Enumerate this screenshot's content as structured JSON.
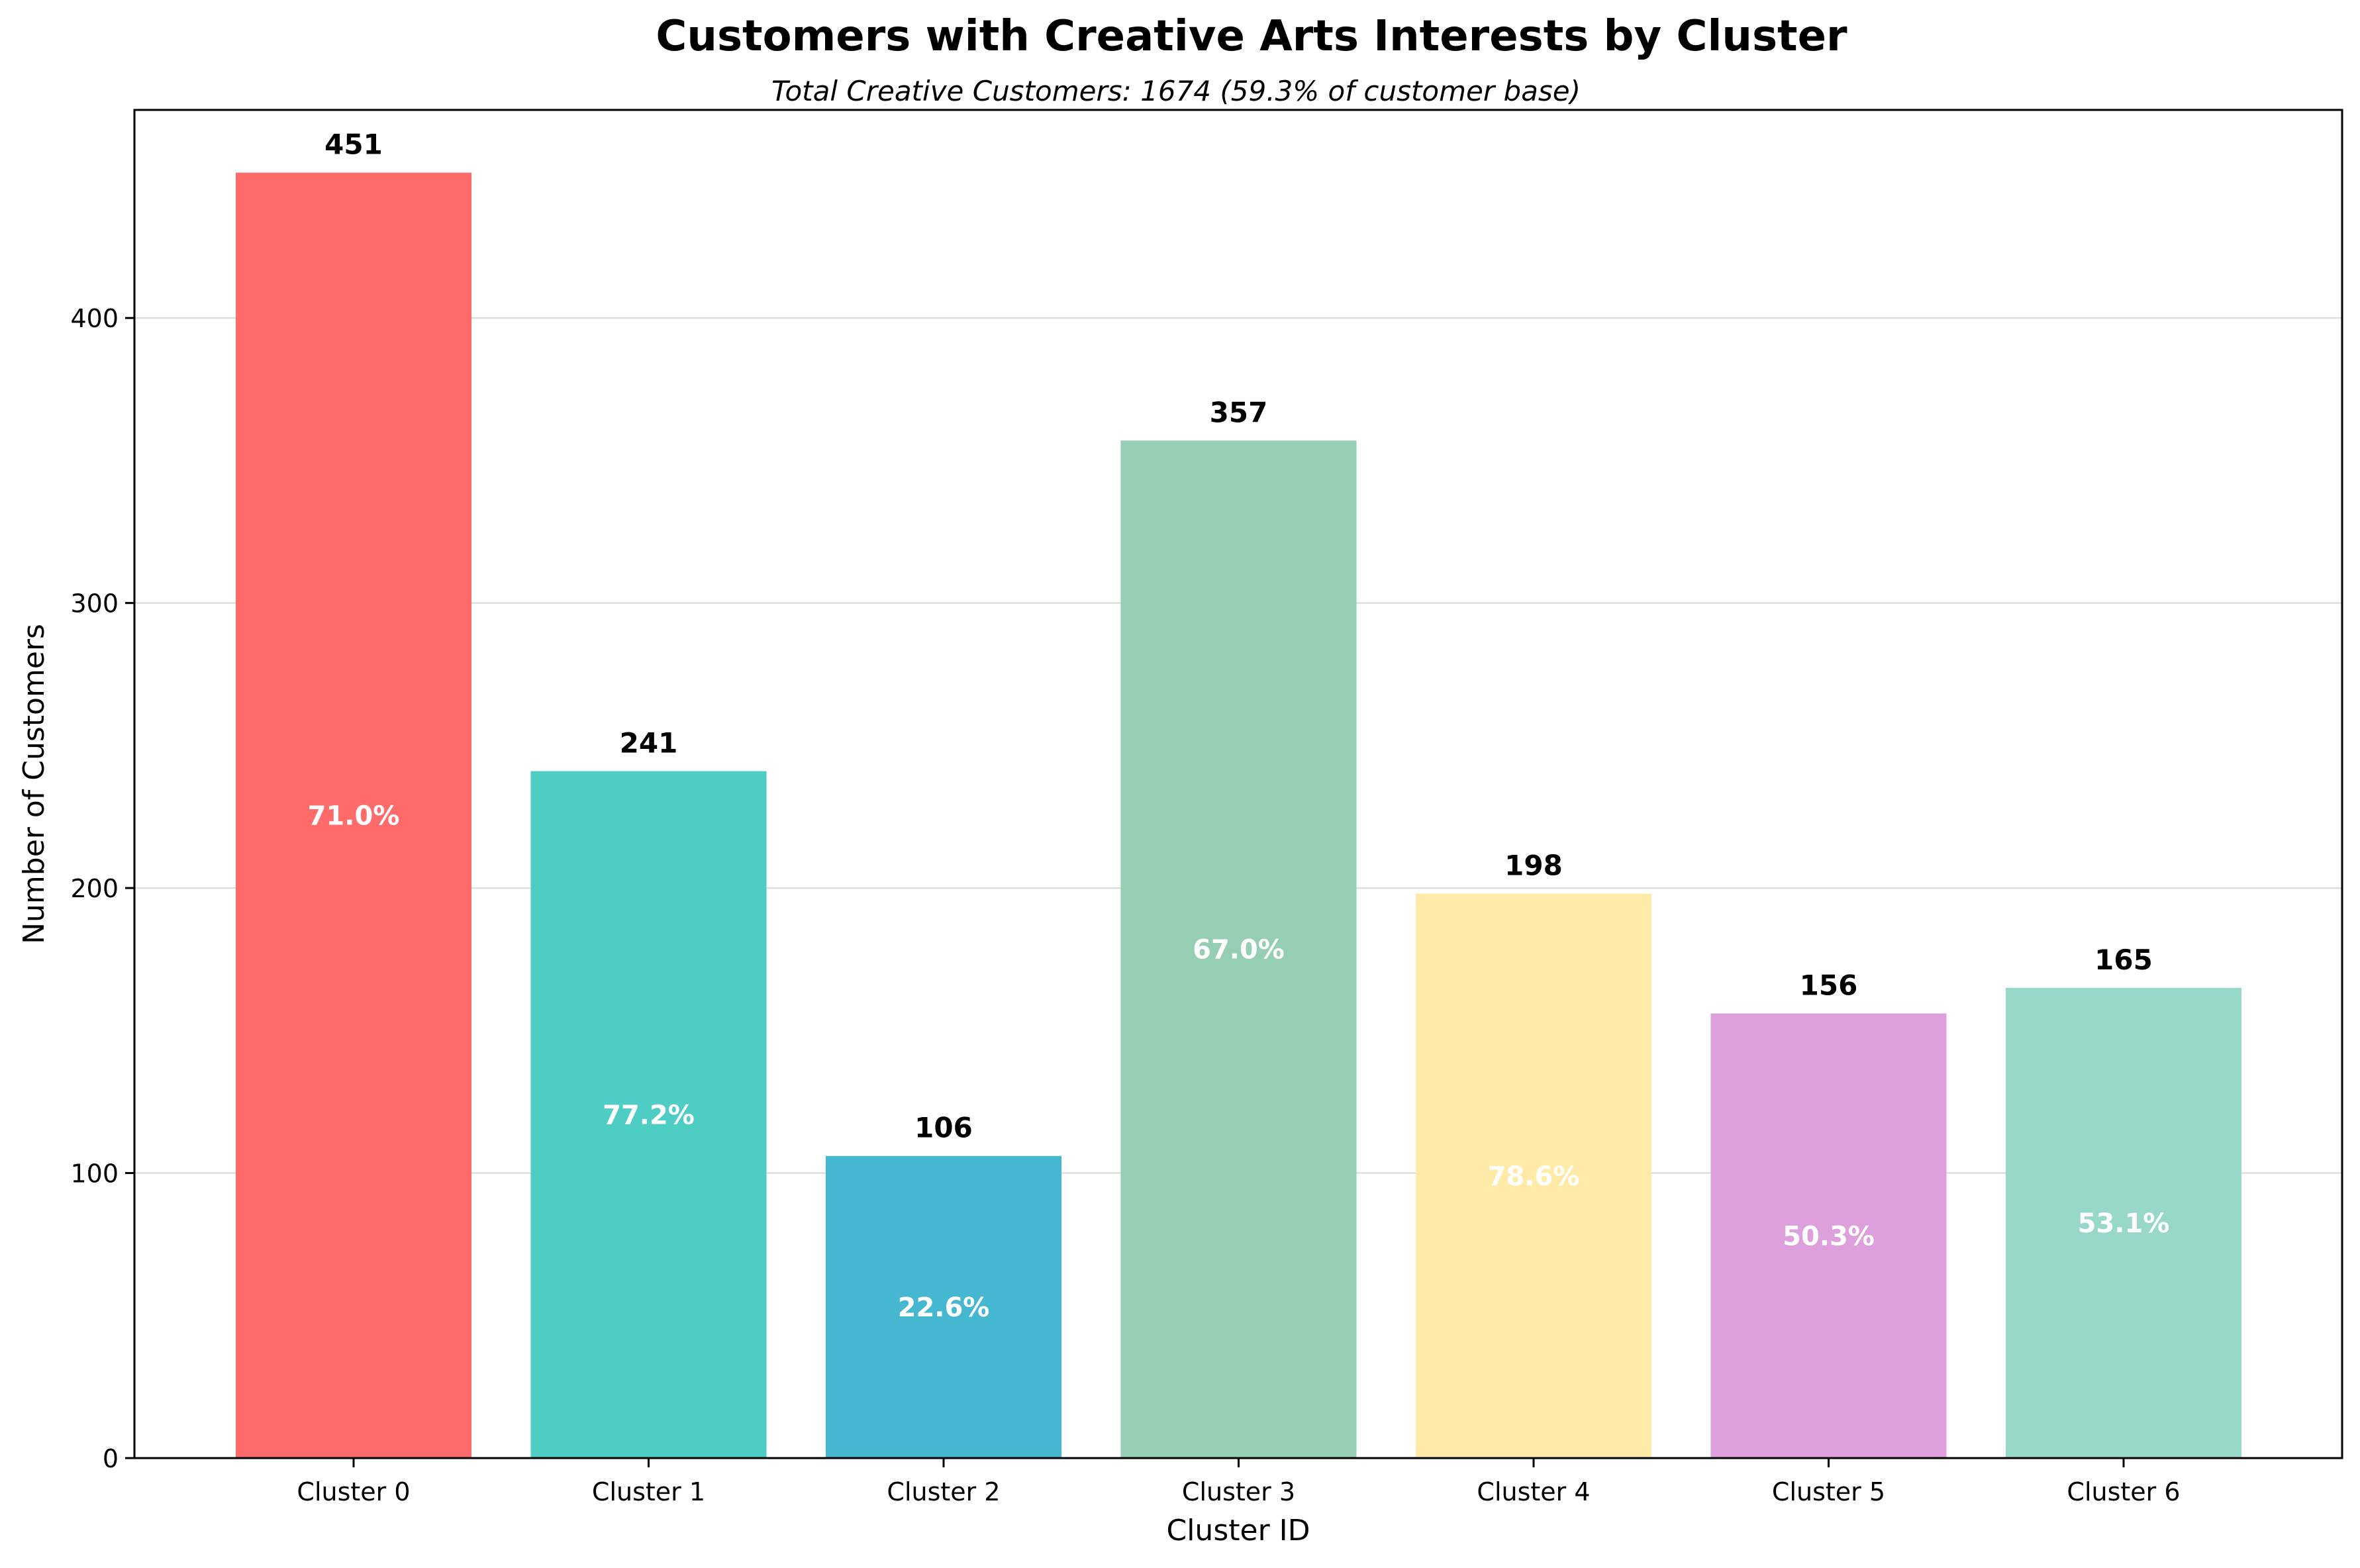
{
  "chart_data": {
    "type": "bar",
    "title": "Customers with Creative Arts Interests by Cluster",
    "subtitle": "Total Creative Customers: 1674 (59.3% of customer base)",
    "xlabel": "Cluster ID",
    "ylabel": "Number of Customers",
    "categories": [
      "Cluster 0",
      "Cluster 1",
      "Cluster 2",
      "Cluster 3",
      "Cluster 4",
      "Cluster 5",
      "Cluster 6"
    ],
    "values": [
      451,
      241,
      106,
      357,
      198,
      156,
      165
    ],
    "value_labels": [
      "451",
      "241",
      "106",
      "357",
      "198",
      "156",
      "165"
    ],
    "percent_labels": [
      "71.0%",
      "77.2%",
      "22.6%",
      "67.0%",
      "78.6%",
      "50.3%",
      "53.1%"
    ],
    "colors": [
      "#FF6B6B",
      "#4ECDC4",
      "#45B7D1",
      "#96CEB4",
      "#FFEAA7",
      "#DDA0DD",
      "#98D8C8"
    ],
    "ylim": [
      0,
      473
    ],
    "yticks": [
      0,
      100,
      200,
      300,
      400
    ],
    "grid": "horizontal",
    "legend": "none"
  }
}
